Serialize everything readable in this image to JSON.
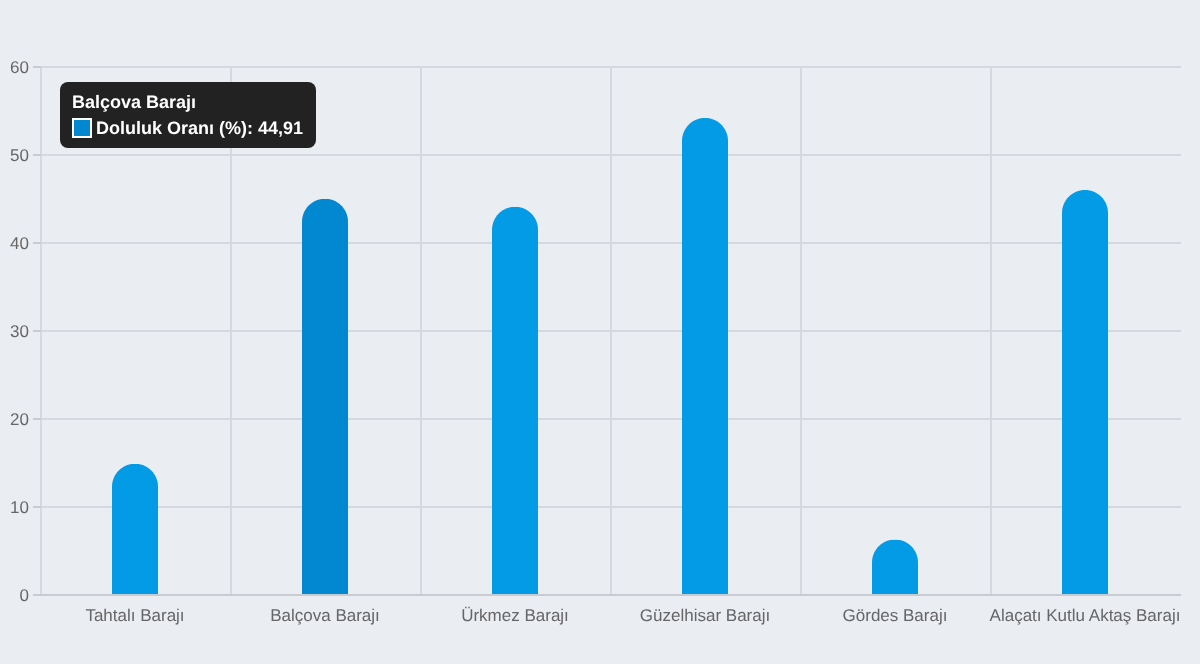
{
  "chart_data": {
    "type": "bar",
    "categories": [
      "Tahtalı Barajı",
      "Balçova Barajı",
      "Ürkmez Barajı",
      "Güzelhisar Barajı",
      "Gördes Barajı",
      "Alaçatı Kutlu Aktaş Barajı"
    ],
    "values": [
      14.8,
      44.91,
      44,
      54.1,
      6.2,
      45.9
    ],
    "colors": [
      "#039be5",
      "#0288d1",
      "#039be5",
      "#039be5",
      "#039be5",
      "#039be5"
    ],
    "ylim": [
      0,
      60
    ],
    "yticks": [
      0,
      10,
      20,
      30,
      40,
      50,
      60
    ],
    "grid": true,
    "annotations": [
      "Balçova Barajı",
      "Doluluk Oranı (%): 44,91"
    ]
  }
}
